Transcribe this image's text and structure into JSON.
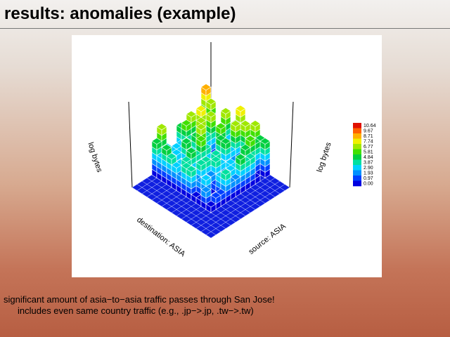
{
  "header": {
    "title": "results: anomalies (example)"
  },
  "figure": {
    "z_label_left": "log bytes",
    "z_label_right": "log bytes",
    "x_label": "destination: ASIA",
    "y_label": "source: ASIA",
    "colorbar_labels": [
      "10.64",
      "9.67",
      "8.71",
      "7.74",
      "6.77",
      "5.81",
      "4.84",
      "3.87",
      "2.90",
      "1.93",
      "0.97",
      "0.00"
    ]
  },
  "caption": {
    "lines": [
      "significant amount of asia−to−asia traffic passes through San Jose!",
      "includes even same country traffic (e.g., .jp−>.jp, .tw−>.tw)"
    ]
  }
}
